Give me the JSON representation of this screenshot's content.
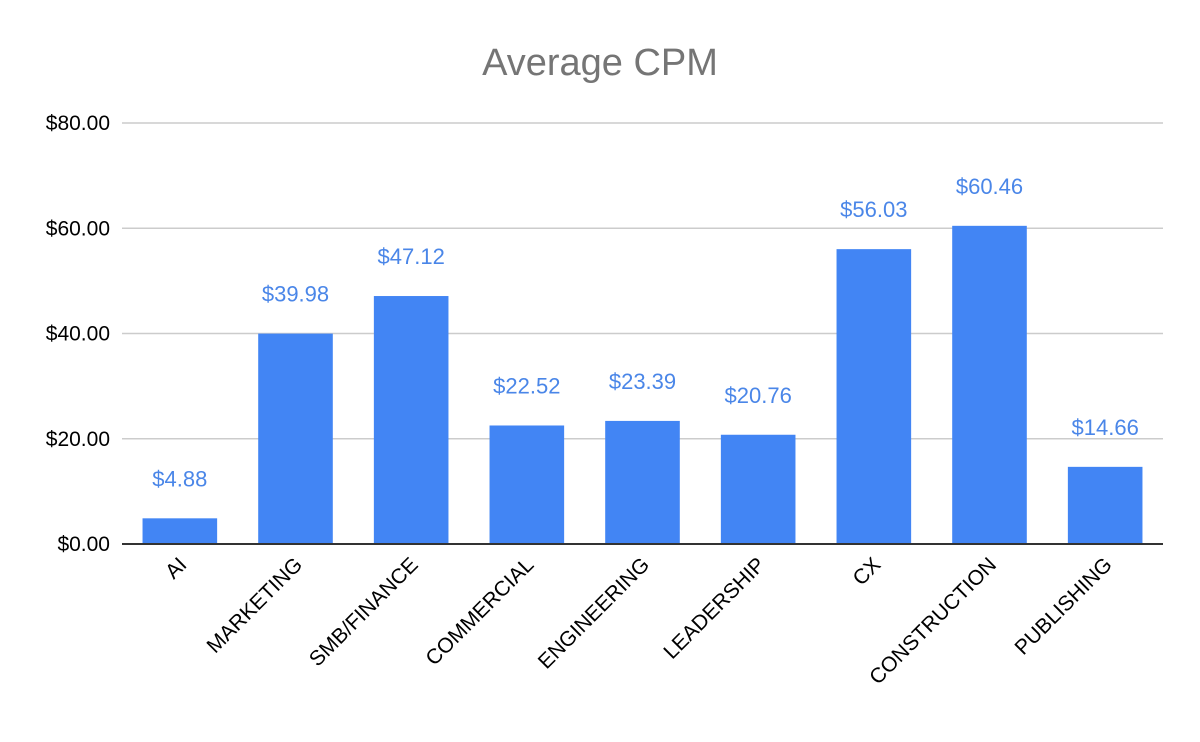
{
  "chart_data": {
    "type": "bar",
    "title": "Average CPM",
    "xlabel": "",
    "ylabel": "",
    "categories": [
      "AI",
      "MARKETING",
      "SMB/FINANCE",
      "COMMERCIAL",
      "ENGINEERING",
      "LEADERSHIP",
      "CX",
      "CONSTRUCTION",
      "PUBLISHING"
    ],
    "values": [
      4.88,
      39.98,
      47.12,
      22.52,
      23.39,
      20.76,
      56.03,
      60.46,
      14.66
    ],
    "data_labels": [
      "$4.88",
      "$39.98",
      "$47.12",
      "$22.52",
      "$23.39",
      "$20.76",
      "$56.03",
      "$60.46",
      "$14.66"
    ],
    "ylim": [
      0,
      80
    ],
    "y_ticks": [
      0,
      20,
      40,
      60,
      80
    ],
    "y_tick_labels": [
      "$0.00",
      "$20.00",
      "$40.00",
      "$60.00",
      "$80.00"
    ],
    "grid": true,
    "legend": "none",
    "colors": {
      "bar": "#4285f4",
      "data_label": "#4a86e8",
      "title": "#757575",
      "grid": "#cccccc"
    }
  }
}
